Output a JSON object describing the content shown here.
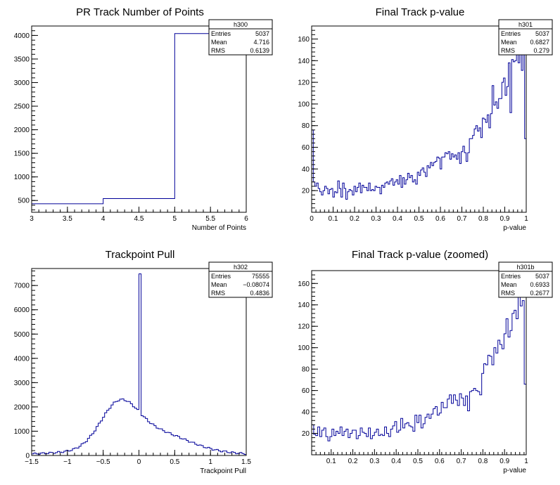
{
  "chart_data": [
    {
      "type": "histogram",
      "title": "PR Track Number of Points",
      "xlabel": "Number of Points",
      "ylabel": "",
      "xlim": [
        3,
        6
      ],
      "ylim": [
        250,
        4200
      ],
      "x_ticks": [
        "3",
        "3.5",
        "4",
        "4.5",
        "5",
        "5.5",
        "6"
      ],
      "y_ticks": [
        "500",
        "1000",
        "1500",
        "2000",
        "2500",
        "3000",
        "3500",
        "4000"
      ],
      "bin_edges": [
        3,
        4,
        5,
        6
      ],
      "values": [
        430,
        540,
        4040
      ],
      "stats": {
        "name": "h300",
        "entries": "5037",
        "mean": "4.716",
        "rms": "0.6139"
      }
    },
    {
      "type": "histogram",
      "title": "Final Track p-value",
      "xlabel": "p-value",
      "ylabel": "",
      "xlim": [
        0,
        1
      ],
      "ylim": [
        0,
        172
      ],
      "x_ticks": [
        "0",
        "0.1",
        "0.2",
        "0.3",
        "0.4",
        "0.5",
        "0.6",
        "0.7",
        "0.8",
        "0.9",
        "1"
      ],
      "y_ticks": [
        "20",
        "40",
        "60",
        "80",
        "100",
        "120",
        "140",
        "160"
      ],
      "bin_edges_range": [
        0,
        1
      ],
      "values": [
        76,
        28,
        24,
        27,
        22,
        19,
        16,
        20,
        24,
        22,
        17,
        21,
        22,
        14,
        19,
        18,
        29,
        22,
        14,
        27,
        22,
        12,
        19,
        21,
        20,
        16,
        24,
        19,
        23,
        27,
        18,
        25,
        23,
        23,
        20,
        27,
        20,
        21,
        20,
        24,
        23,
        23,
        17,
        25,
        23,
        27,
        28,
        26,
        29,
        31,
        25,
        28,
        30,
        26,
        34,
        23,
        32,
        26,
        30,
        36,
        32,
        34,
        28,
        30,
        26,
        37,
        34,
        39,
        41,
        37,
        33,
        43,
        41,
        46,
        43,
        46,
        47,
        51,
        50,
        40,
        51,
        51,
        55,
        54,
        56,
        49,
        54,
        51,
        53,
        49,
        55,
        45,
        56,
        61,
        55,
        47,
        55,
        68,
        68,
        71,
        77,
        80,
        75,
        78,
        69,
        87,
        86,
        83,
        90,
        78,
        91,
        117,
        99,
        102,
        96,
        105,
        105,
        120,
        124,
        108,
        116,
        138,
        92,
        141,
        139,
        140,
        168,
        138,
        150,
        131,
        146,
        68
      ],
      "stats": {
        "name": "h301",
        "entries": "5037",
        "mean": "0.6827",
        "rms": "0.279"
      }
    },
    {
      "type": "histogram",
      "title": "Trackpoint Pull",
      "xlabel": "Trackpoint Pull",
      "ylabel": "",
      "xlim": [
        -1.5,
        1.5
      ],
      "ylim": [
        0,
        7700
      ],
      "x_ticks": [
        "−1.5",
        "−1",
        "−0.5",
        "0",
        "0.5",
        "1",
        "1.5"
      ],
      "y_ticks": [
        "0",
        "1000",
        "2000",
        "3000",
        "4000",
        "5000",
        "6000",
        "7000"
      ],
      "bin_edges_range": [
        -1.5,
        1.5
      ],
      "peak": {
        "x": 0.0,
        "value": 7480
      },
      "stats": {
        "name": "h302",
        "entries": "75555",
        "mean": "−0.08074",
        "rms": "0.4836"
      }
    },
    {
      "type": "histogram",
      "title": "Final Track p-value (zoomed)",
      "xlabel": "p-value",
      "ylabel": "",
      "xlim": [
        0.01,
        1
      ],
      "ylim": [
        0,
        172
      ],
      "x_ticks": [
        "0.1",
        "0.2",
        "0.3",
        "0.4",
        "0.5",
        "0.6",
        "0.7",
        "0.8",
        "0.9",
        "1"
      ],
      "y_ticks": [
        "20",
        "40",
        "60",
        "80",
        "100",
        "120",
        "140",
        "160"
      ],
      "bin_edges_range": [
        0.01,
        1
      ],
      "values": [
        28,
        19,
        18,
        26,
        17,
        23,
        25,
        17,
        13,
        17,
        24,
        18,
        22,
        20,
        26,
        18,
        22,
        24,
        16,
        20,
        23,
        23,
        15,
        18,
        25,
        21,
        20,
        17,
        25,
        15,
        18,
        21,
        24,
        18,
        19,
        18,
        26,
        20,
        17,
        24,
        27,
        31,
        21,
        23,
        34,
        25,
        29,
        30,
        27,
        26,
        22,
        37,
        30,
        37,
        25,
        29,
        35,
        38,
        34,
        38,
        43,
        45,
        37,
        39,
        49,
        44,
        44,
        52,
        56,
        48,
        56,
        51,
        46,
        57,
        53,
        46,
        55,
        41,
        59,
        60,
        62,
        60,
        59,
        56,
        76,
        85,
        84,
        93,
        92,
        84,
        100,
        95,
        107,
        103,
        99,
        113,
        127,
        110,
        116,
        132,
        135,
        127,
        148,
        139,
        144,
        66
      ],
      "stats": {
        "name": "h301b",
        "entries": "5037",
        "mean": "0.6933",
        "rms": "0.2677"
      }
    }
  ]
}
